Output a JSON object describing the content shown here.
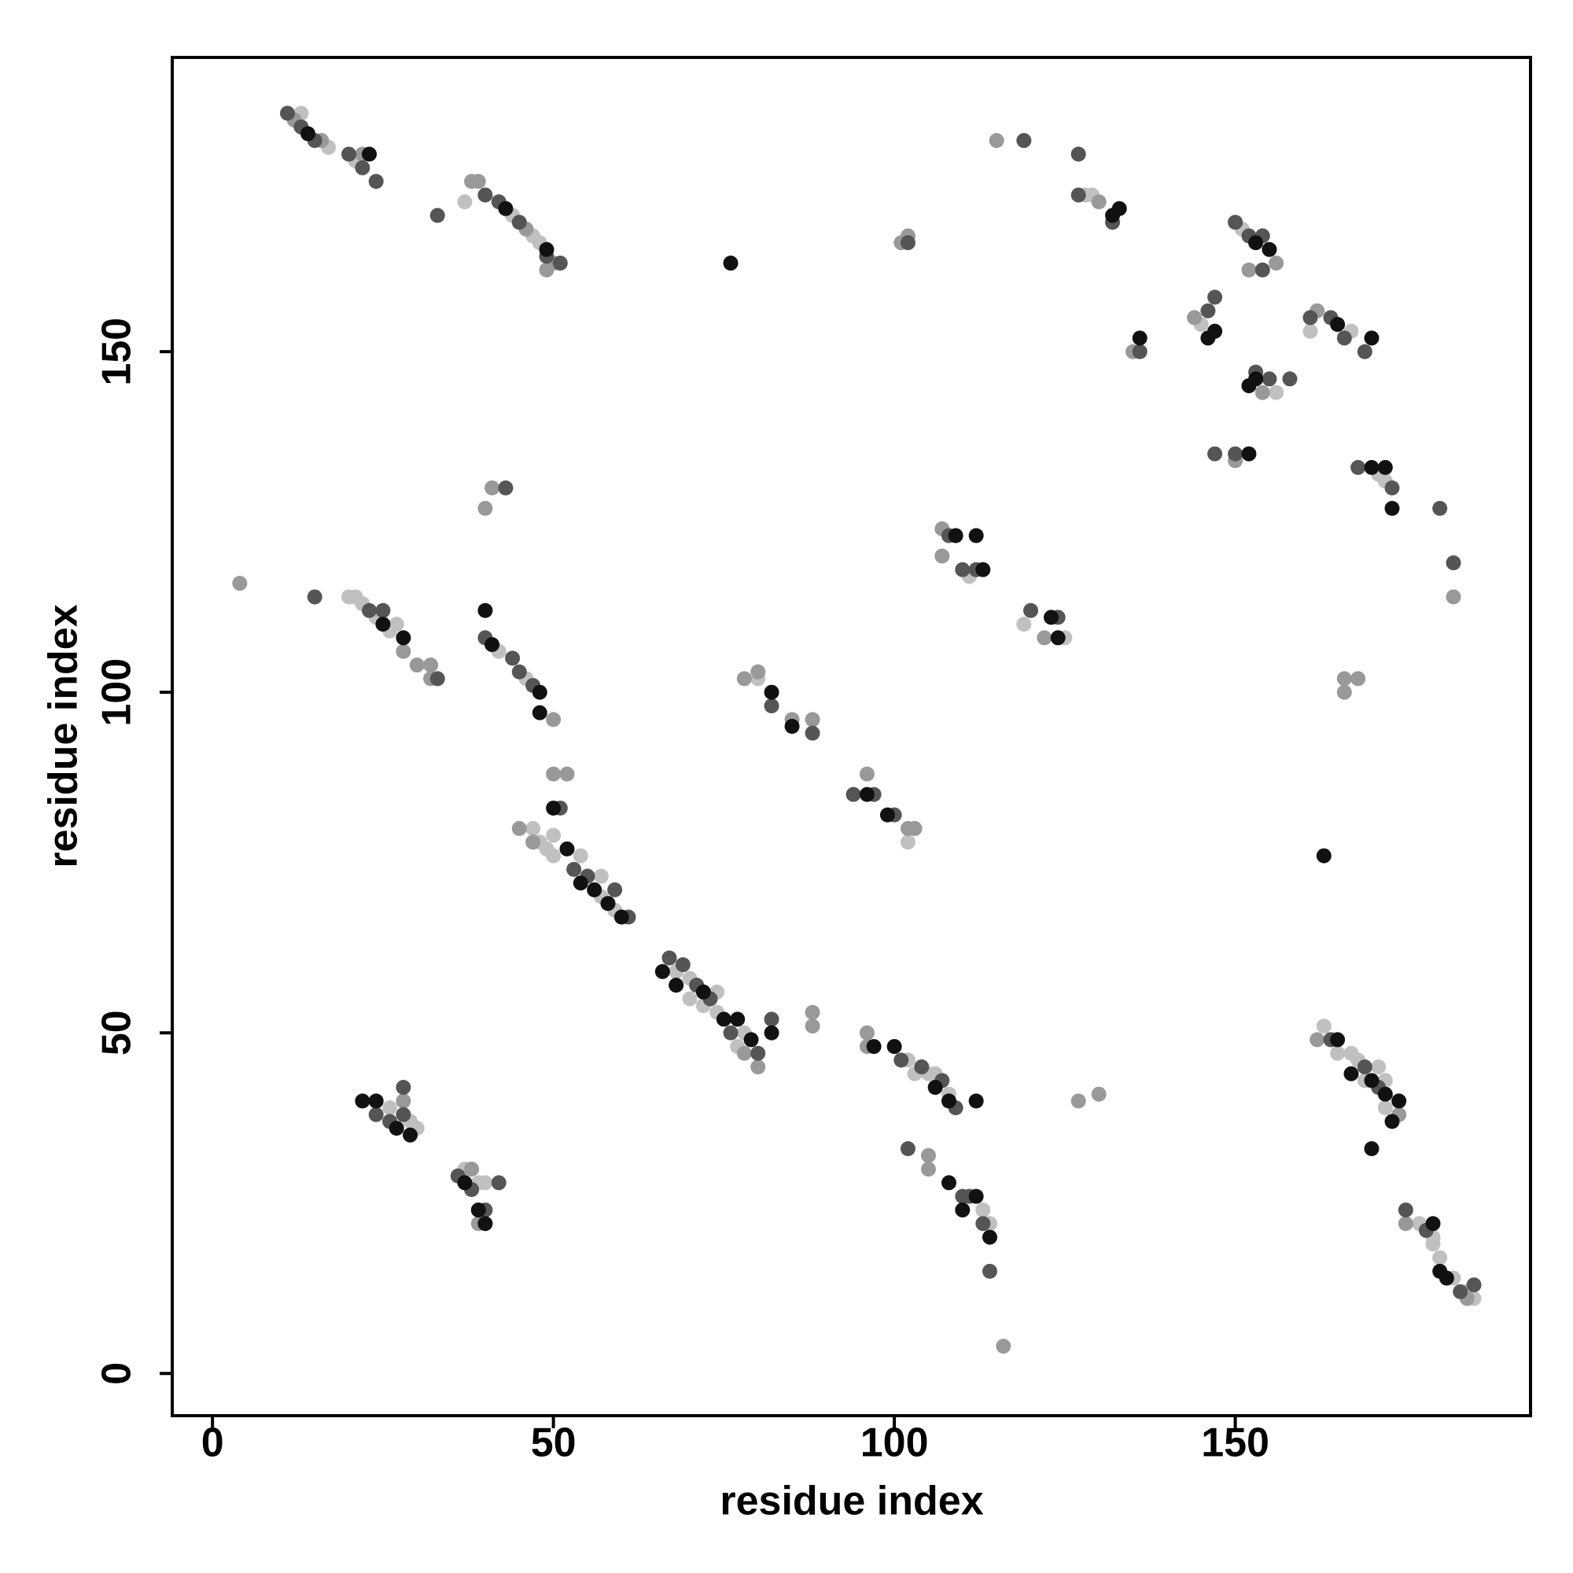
{
  "chart_data": {
    "type": "scatter",
    "xlabel": "residue index",
    "ylabel": "residue index",
    "xlim": [
      -5.9,
      193.3
    ],
    "ylim": [
      -6.2,
      193.2
    ],
    "xticks": [
      0,
      50,
      100,
      150
    ],
    "yticks": [
      0,
      50,
      100,
      150
    ],
    "series": [
      {
        "color": "#c0c0c0",
        "x": [
          13,
          17,
          21,
          37,
          44,
          47,
          48,
          128,
          129,
          151,
          145,
          156,
          161,
          167,
          171,
          172,
          111,
          119,
          125,
          20,
          21,
          22,
          24,
          26,
          27,
          42,
          46,
          80,
          102,
          47,
          48,
          49,
          50,
          50,
          54,
          57,
          57,
          59,
          68,
          70,
          70,
          72,
          74,
          74,
          78,
          77,
          102,
          103,
          105,
          106,
          108,
          26,
          29,
          30,
          37,
          39,
          40,
          113,
          114,
          163,
          165,
          167,
          168,
          169,
          171,
          172,
          172,
          177,
          179,
          179,
          180,
          182,
          184,
          185
        ],
        "y": [
          185,
          180,
          178,
          172,
          170,
          167,
          166,
          173,
          173,
          168,
          154,
          144,
          153,
          153,
          132,
          131,
          117,
          110,
          108,
          114,
          114,
          113,
          111,
          109,
          110,
          106,
          102,
          102,
          78,
          80,
          78,
          77,
          76,
          79,
          76,
          70,
          73,
          68,
          59,
          58,
          55,
          54,
          53,
          56,
          50,
          48,
          46,
          44,
          44,
          44,
          41,
          39,
          37,
          36,
          30,
          28,
          28,
          24,
          22,
          51,
          47,
          47,
          46,
          43,
          45,
          43,
          39,
          22,
          20,
          19,
          17,
          14,
          12,
          11
        ]
      },
      {
        "color": "#999999",
        "x": [
          12,
          16,
          22,
          38,
          39,
          46,
          49,
          50,
          115,
          130,
          101,
          102,
          152,
          135,
          144,
          156,
          154,
          162,
          150,
          182,
          107,
          107,
          122,
          4,
          28,
          30,
          32,
          32,
          50,
          40,
          41,
          78,
          80,
          85,
          88,
          96,
          102,
          103,
          50,
          52,
          45,
          47,
          88,
          88,
          96,
          96,
          78,
          80,
          127,
          130,
          28,
          38,
          39,
          105,
          105,
          116,
          162,
          166,
          168,
          174,
          166,
          175,
          184
        ],
        "y": [
          184,
          181,
          179,
          175,
          175,
          168,
          162,
          163,
          181,
          172,
          166,
          167,
          162,
          150,
          155,
          163,
          144,
          156,
          134,
          114,
          124,
          120,
          108,
          116,
          106,
          104,
          104,
          102,
          96,
          127,
          130,
          102,
          103,
          96,
          96,
          88,
          80,
          80,
          88,
          88,
          80,
          78,
          53,
          51,
          50,
          48,
          47,
          45,
          40,
          41,
          40,
          30,
          22,
          32,
          30,
          4,
          49,
          100,
          102,
          38,
          102,
          22,
          11
        ]
      },
      {
        "color": "#555555",
        "x": [
          11,
          13,
          15,
          20,
          22,
          24,
          33,
          40,
          42,
          45,
          49,
          51,
          119,
          127,
          127,
          132,
          102,
          150,
          152,
          154,
          154,
          136,
          146,
          147,
          155,
          158,
          153,
          161,
          164,
          166,
          169,
          147,
          150,
          168,
          173,
          180,
          182,
          108,
          110,
          112,
          120,
          124,
          15,
          23,
          25,
          33,
          40,
          44,
          45,
          47,
          43,
          82,
          88,
          94,
          97,
          100,
          51,
          53,
          55,
          59,
          61,
          67,
          69,
          71,
          73,
          76,
          82,
          80,
          101,
          104,
          107,
          109,
          24,
          26,
          28,
          28,
          36,
          38,
          40,
          42,
          102,
          110,
          111,
          113,
          114,
          164,
          169,
          171,
          175,
          178,
          183,
          185
        ],
        "y": [
          185,
          183,
          181,
          179,
          177,
          175,
          170,
          173,
          172,
          169,
          164,
          163,
          181,
          179,
          173,
          169,
          166,
          169,
          167,
          167,
          162,
          150,
          156,
          158,
          146,
          146,
          147,
          155,
          155,
          152,
          150,
          135,
          135,
          133,
          130,
          127,
          119,
          123,
          118,
          118,
          112,
          111,
          114,
          112,
          112,
          102,
          108,
          105,
          103,
          101,
          130,
          98,
          94,
          85,
          85,
          82,
          83,
          74,
          73,
          71,
          67,
          61,
          60,
          57,
          55,
          50,
          52,
          47,
          46,
          45,
          43,
          39,
          38,
          37,
          42,
          38,
          29,
          27,
          24,
          28,
          33,
          26,
          26,
          22,
          15,
          49,
          45,
          42,
          24,
          21,
          12,
          13
        ]
      },
      {
        "color": "#111111",
        "x": [
          23,
          14,
          43,
          49,
          76,
          132,
          133,
          153,
          155,
          136,
          146,
          147,
          153,
          152,
          165,
          170,
          152,
          170,
          172,
          173,
          109,
          112,
          113,
          123,
          124,
          25,
          28,
          40,
          41,
          48,
          48,
          82,
          85,
          96,
          99,
          50,
          52,
          54,
          56,
          58,
          60,
          66,
          68,
          72,
          75,
          77,
          79,
          82,
          97,
          100,
          106,
          108,
          112,
          22,
          24,
          27,
          29,
          37,
          39,
          40,
          108,
          110,
          112,
          114,
          163,
          165,
          167,
          170,
          172,
          174,
          173,
          179,
          180,
          181,
          170
        ],
        "y": [
          179,
          182,
          171,
          165,
          163,
          170,
          171,
          166,
          165,
          152,
          152,
          153,
          146,
          145,
          154,
          152,
          135,
          133,
          133,
          127,
          123,
          123,
          118,
          111,
          108,
          110,
          108,
          112,
          107,
          100,
          97,
          100,
          95,
          85,
          82,
          83,
          77,
          72,
          71,
          69,
          67,
          59,
          57,
          56,
          52,
          52,
          49,
          50,
          48,
          48,
          42,
          40,
          40,
          40,
          40,
          36,
          35,
          28,
          24,
          22,
          28,
          24,
          26,
          20,
          76,
          49,
          44,
          43,
          41,
          40,
          37,
          22,
          15,
          14,
          33
        ]
      }
    ]
  }
}
